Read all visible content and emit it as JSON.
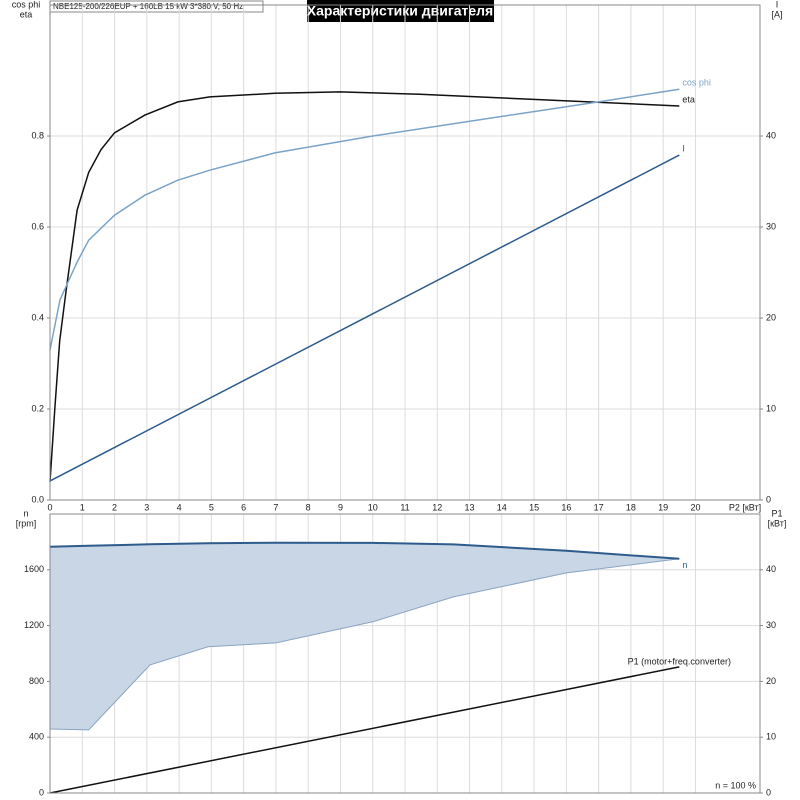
{
  "chart_data": [
    {
      "type": "line",
      "title": "Характеристики двигателя",
      "subtitle": "NBE125-200/226EUP + 160LB   15 kW   3*380 V, 50 Hz",
      "ylabel_lines": [
        "cos phi",
        "eta"
      ],
      "y2label_lines": [
        "I",
        "[A]"
      ],
      "xlabel": "P2 [кВт]",
      "xlim": [
        0,
        22
      ],
      "xticks": [
        0,
        1,
        2,
        3,
        4,
        5,
        6,
        7,
        8,
        9,
        10,
        11,
        12,
        13,
        14,
        15,
        16,
        17,
        18,
        19,
        20
      ],
      "ylim": [
        0,
        1.088
      ],
      "yticks": [
        {
          "value": 0,
          "label": "0.0"
        },
        0.2,
        0.4,
        0.6,
        0.8
      ],
      "y2lim": [
        0,
        54.4
      ],
      "y2ticks": [
        0,
        10,
        20,
        30,
        40
      ],
      "grid": true,
      "series": [
        {
          "name": "eta",
          "color": "#111111",
          "x": [
            0,
            0.15,
            0.3,
            0.5,
            0.84,
            1.2,
            1.58,
            2.0,
            2.94,
            3.96,
            4.95,
            6.97,
            8.98,
            11.46,
            15.5,
            19.5
          ],
          "values": [
            0.04,
            0.2,
            0.35,
            0.46,
            0.637,
            0.72,
            0.77,
            0.807,
            0.846,
            0.875,
            0.886,
            0.894,
            0.897,
            0.892,
            0.879,
            0.866
          ]
        },
        {
          "name": "cos phi",
          "color": "#7ba3c8",
          "x": [
            0,
            0.31,
            0.84,
            1.2,
            2.0,
            2.94,
            3.96,
            4.95,
            6.97,
            10,
            13.9,
            17,
            19.5
          ],
          "values": [
            0.33,
            0.44,
            0.523,
            0.571,
            0.626,
            0.67,
            0.703,
            0.725,
            0.763,
            0.8,
            0.842,
            0.875,
            0.903
          ]
        },
        {
          "name": "I",
          "color": "#2d5b8c",
          "axis": "y2",
          "x": [
            0,
            19.5
          ],
          "values": [
            2.1,
            37.9
          ]
        }
      ]
    },
    {
      "type": "area-line",
      "ylabel_lines": [
        "n",
        "[rpm]"
      ],
      "y2label_lines": [
        "P1",
        "[кВт]"
      ],
      "annotation": "n = 100 %",
      "xlim": [
        0,
        22
      ],
      "xticks": [
        0,
        1,
        2,
        3,
        4,
        5,
        6,
        7,
        8,
        9,
        10,
        11,
        12,
        13,
        14,
        15,
        16,
        17,
        18,
        19,
        20
      ],
      "ylim": [
        0,
        2000
      ],
      "yticks": [
        0,
        400,
        800,
        1200,
        1600
      ],
      "y2lim": [
        0,
        50
      ],
      "y2ticks": [
        0,
        10,
        20,
        30,
        40
      ],
      "grid": true,
      "series": [
        {
          "name": "n",
          "color": "#2d5b8c",
          "fill": "#c9d6e5",
          "x": [
            0,
            1.2,
            3.1,
            4.9,
            7,
            10,
            12.5,
            16,
            19.5
          ],
          "values": [
            1765,
            1772,
            1783,
            1790,
            1794,
            1793,
            1782,
            1736,
            1679
          ],
          "lower": [
            459,
            452,
            918,
            1048,
            1076,
            1227,
            1406,
            1578,
            1679
          ]
        },
        {
          "name": "P1 (motor+freq.converter)",
          "color": "#111111",
          "axis": "y2",
          "x": [
            0,
            19.5
          ],
          "values": [
            0,
            22.6
          ]
        }
      ]
    }
  ]
}
